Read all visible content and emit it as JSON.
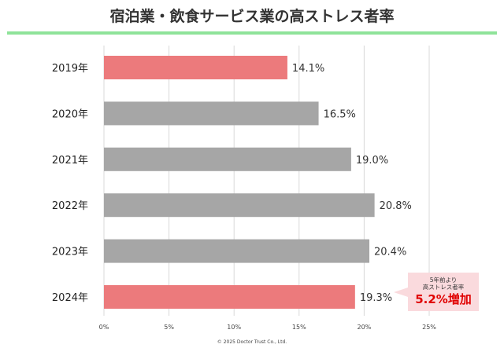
{
  "colors": {
    "highlight": "#ec7a7c",
    "default": "#a6a6a6",
    "rule": "#8fe39a",
    "callout_bg": "#fadadd",
    "callout_text": "#e00000"
  },
  "footer": "© 2025 Doctor Trust Co., Ltd.",
  "callout": {
    "line1": "5年前より",
    "line2": "高ストレス者率",
    "value": "5.2%増加"
  },
  "chart_data": {
    "type": "bar",
    "orientation": "horizontal",
    "title": "宿泊業・飲食サービス業の高ストレス者率",
    "categories": [
      "2019年",
      "2020年",
      "2021年",
      "2022年",
      "2023年",
      "2024年"
    ],
    "values": [
      14.1,
      16.5,
      19.0,
      20.8,
      20.4,
      19.3
    ],
    "data_labels": [
      "14.1%",
      "16.5%",
      "19.0%",
      "20.8%",
      "20.4%",
      "19.3%"
    ],
    "highlighted": [
      true,
      false,
      false,
      false,
      false,
      true
    ],
    "xlim": [
      0,
      29
    ],
    "xticks": [
      0,
      5,
      10,
      15,
      20,
      25
    ],
    "xtick_labels": [
      "0%",
      "5%",
      "10%",
      "15%",
      "20%",
      "25%"
    ],
    "grid": "vertical",
    "xlabel": "",
    "ylabel": ""
  }
}
